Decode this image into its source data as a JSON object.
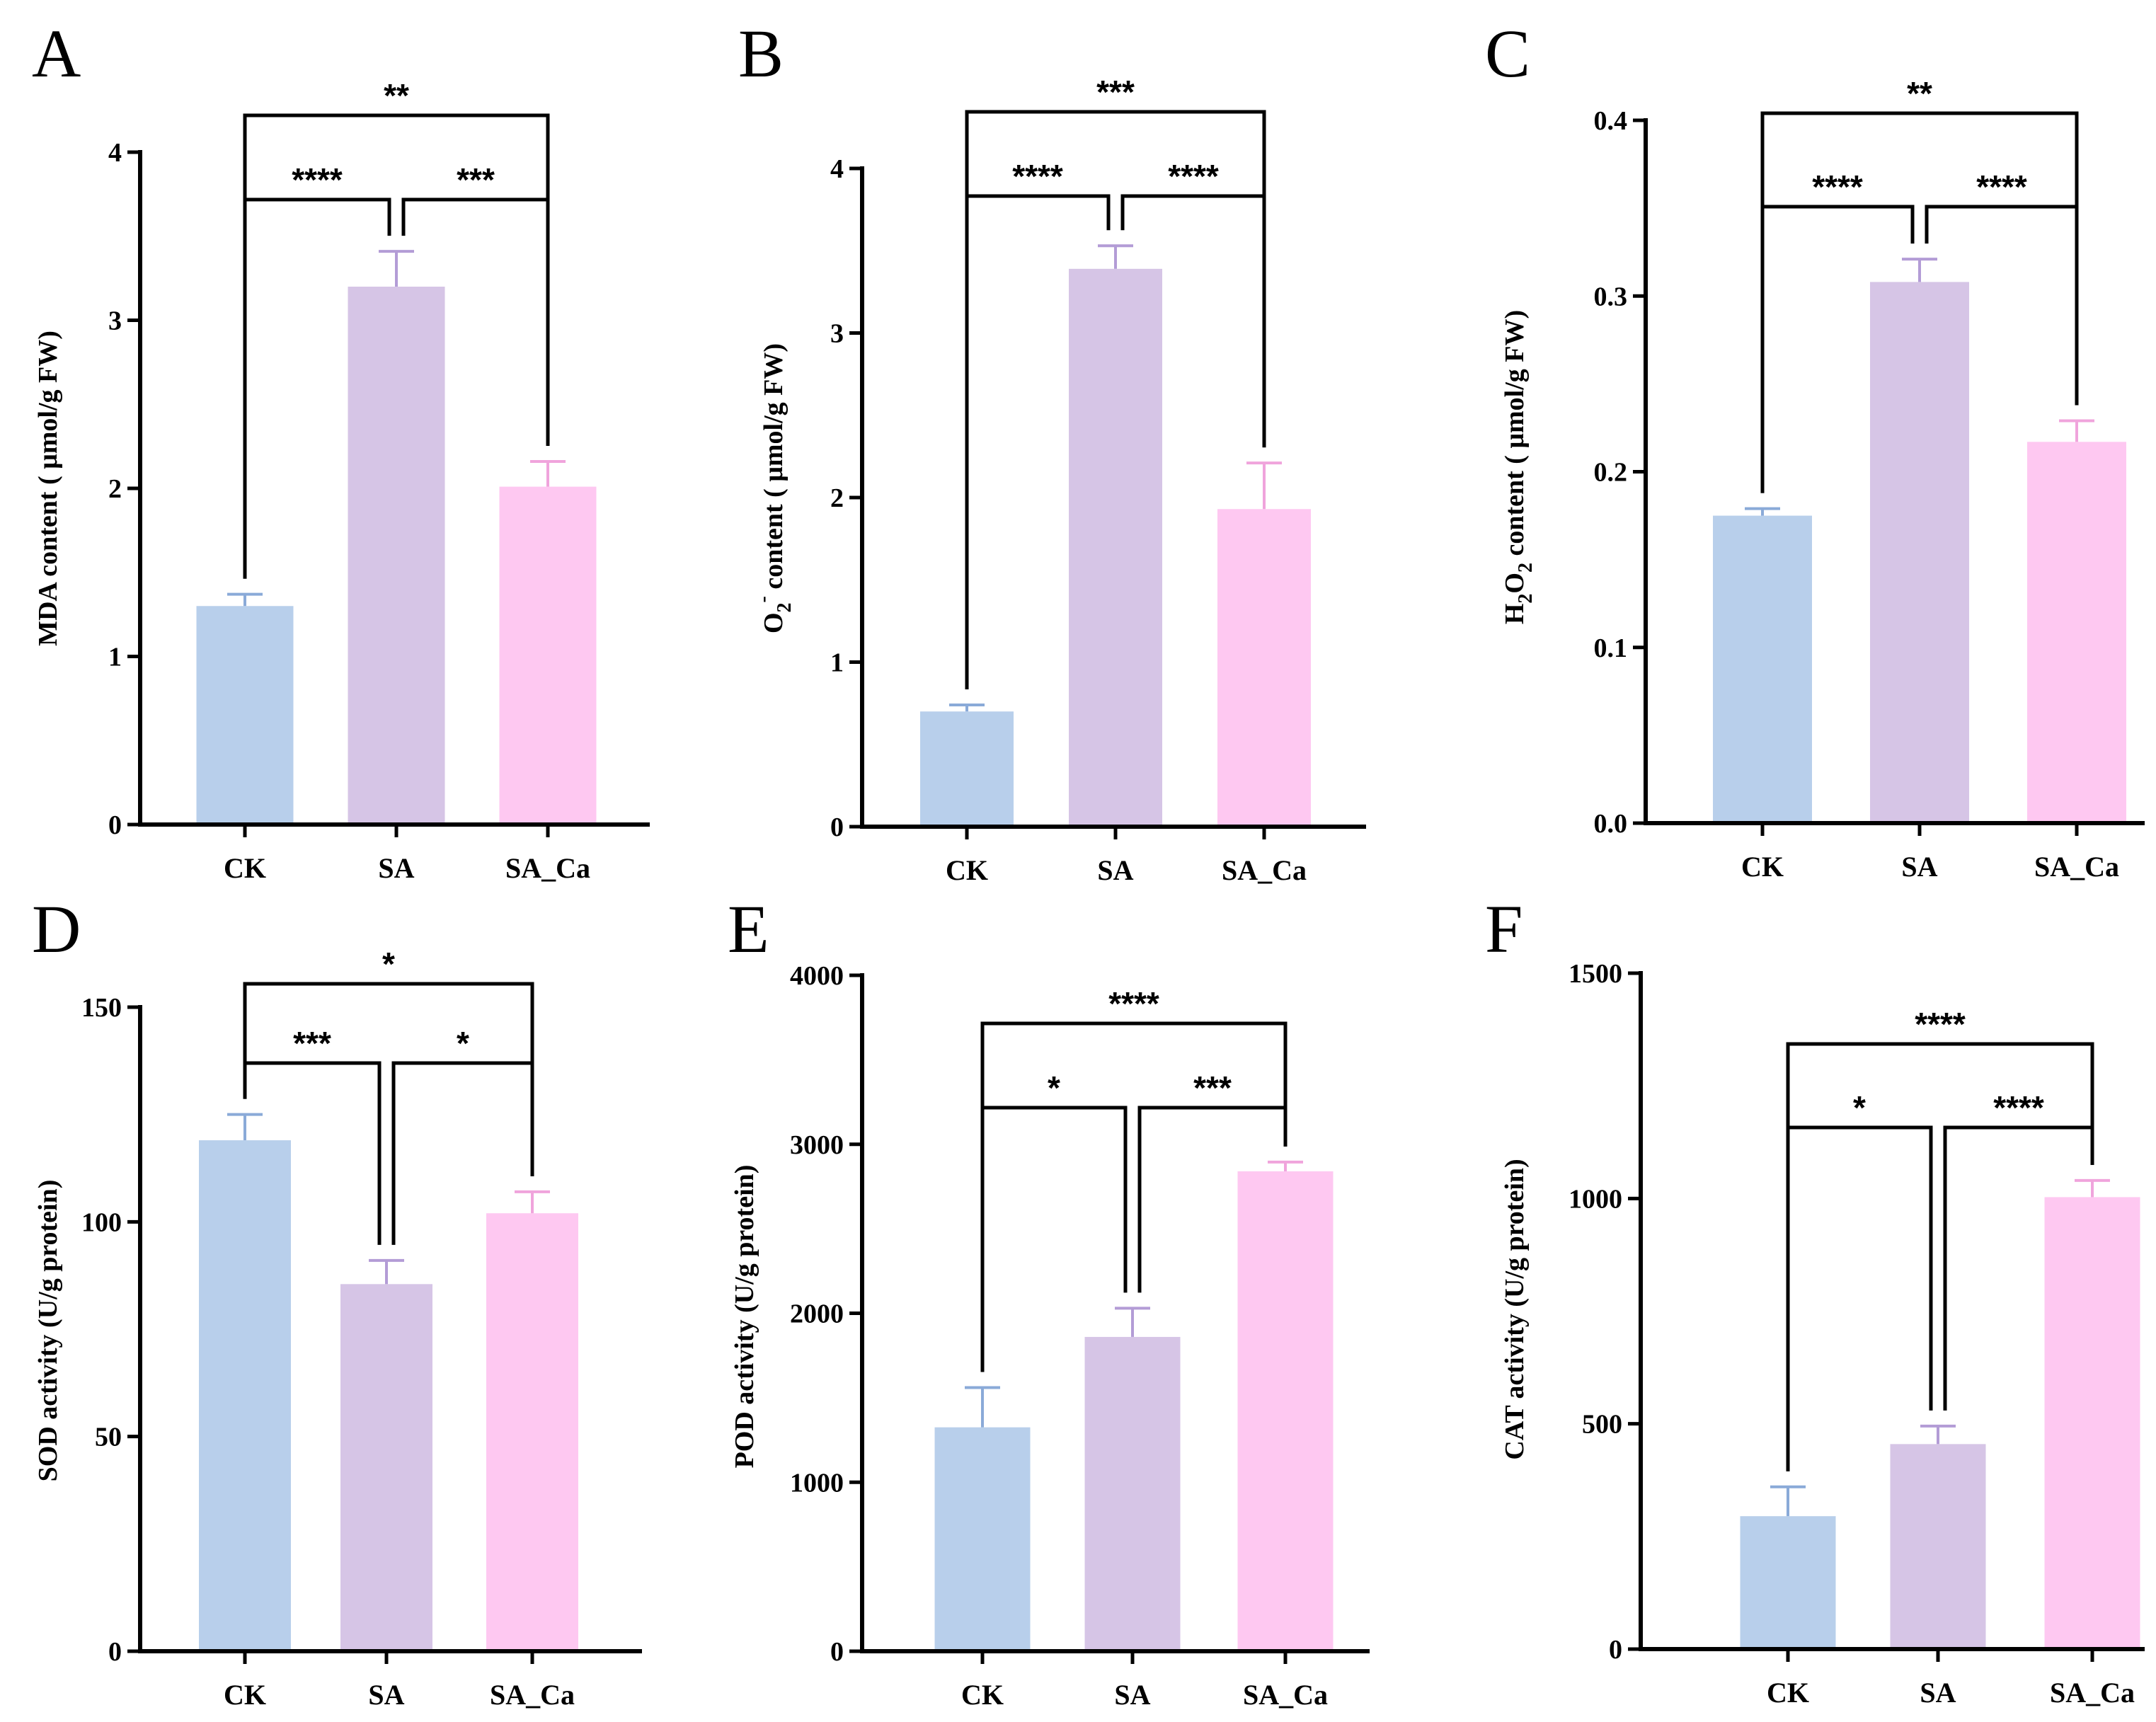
{
  "colors": {
    "CK": "#b8cfeb",
    "SA": "#d6c5e6",
    "SA_Ca": "#fec8f1",
    "CK_err": "#8aaad8",
    "SA_err": "#b39cd6",
    "SA_Ca_err": "#f0a4dc"
  },
  "chart_data": [
    {
      "panel": "A",
      "type": "bar",
      "ylabel": "MDA content ( μmol/g FW)",
      "categories": [
        "CK",
        "SA",
        "SA_Ca"
      ],
      "values": [
        1.3,
        3.2,
        2.01
      ],
      "errors": [
        0.07,
        0.21,
        0.15
      ],
      "ylim": [
        0,
        4
      ],
      "ticks": [
        0,
        1,
        2,
        3,
        4
      ],
      "tick_labels": [
        "0",
        "1",
        "2",
        "3",
        "4"
      ],
      "significance": [
        {
          "from": 0,
          "to": 1,
          "label": "****"
        },
        {
          "from": 1,
          "to": 2,
          "label": "***"
        },
        {
          "from": 0,
          "to": 2,
          "label": "**"
        }
      ]
    },
    {
      "panel": "B",
      "type": "bar",
      "ylabel": "O2- content ( μmol/g FW)",
      "ylabel_parts": [
        "O",
        "2",
        "-",
        " content ( μmol/g FW)"
      ],
      "categories": [
        "CK",
        "SA",
        "SA_Ca"
      ],
      "values": [
        0.7,
        3.39,
        1.93
      ],
      "errors": [
        0.04,
        0.14,
        0.28
      ],
      "ylim": [
        0,
        4
      ],
      "ticks": [
        0,
        1,
        2,
        3,
        4
      ],
      "tick_labels": [
        "0",
        "1",
        "2",
        "3",
        "4"
      ],
      "significance": [
        {
          "from": 0,
          "to": 1,
          "label": "****"
        },
        {
          "from": 1,
          "to": 2,
          "label": "****"
        },
        {
          "from": 0,
          "to": 2,
          "label": "***"
        }
      ]
    },
    {
      "panel": "C",
      "type": "bar",
      "ylabel": "H2O2 content ( μmol/g FW)",
      "ylabel_parts": [
        "H",
        "2",
        "O",
        "2",
        " content ( μmol/g FW)"
      ],
      "categories": [
        "CK",
        "SA",
        "SA_Ca"
      ],
      "values": [
        0.175,
        0.308,
        0.217
      ],
      "errors": [
        0.004,
        0.013,
        0.012
      ],
      "ylim": [
        0,
        0.4
      ],
      "ticks": [
        0,
        0.1,
        0.2,
        0.3,
        0.4
      ],
      "tick_labels": [
        "0.0",
        "0.1",
        "0.2",
        "0.3",
        "0.4"
      ],
      "significance": [
        {
          "from": 0,
          "to": 1,
          "label": "****"
        },
        {
          "from": 1,
          "to": 2,
          "label": "****"
        },
        {
          "from": 0,
          "to": 2,
          "label": "**"
        }
      ]
    },
    {
      "panel": "D",
      "type": "bar",
      "ylabel": "SOD activity (U/g protein)",
      "categories": [
        "CK",
        "SA",
        "SA_Ca"
      ],
      "values": [
        119,
        85.5,
        102
      ],
      "errors": [
        6,
        5.5,
        5
      ],
      "ylim": [
        0,
        150
      ],
      "ticks": [
        0,
        50,
        100,
        150
      ],
      "tick_labels": [
        "0",
        "50",
        "100",
        "150"
      ],
      "significance": [
        {
          "from": 0,
          "to": 1,
          "label": "***"
        },
        {
          "from": 1,
          "to": 2,
          "label": "*"
        },
        {
          "from": 0,
          "to": 2,
          "label": "*"
        }
      ]
    },
    {
      "panel": "E",
      "type": "bar",
      "ylabel": "POD activity (U/g protein)",
      "categories": [
        "CK",
        "SA",
        "SA_Ca"
      ],
      "values": [
        1325,
        1860,
        2840
      ],
      "errors": [
        235,
        170,
        55
      ],
      "ylim": [
        0,
        4000
      ],
      "ticks": [
        0,
        1000,
        2000,
        3000,
        4000
      ],
      "tick_labels": [
        "0",
        "1000",
        "2000",
        "3000",
        "4000"
      ],
      "significance": [
        {
          "from": 0,
          "to": 1,
          "label": "*"
        },
        {
          "from": 1,
          "to": 2,
          "label": "***"
        },
        {
          "from": 0,
          "to": 2,
          "label": "****"
        }
      ]
    },
    {
      "panel": "F",
      "type": "bar",
      "ylabel": "CAT activity (U/g protein)",
      "categories": [
        "CK",
        "SA",
        "SA_Ca"
      ],
      "values": [
        295,
        455,
        1003
      ],
      "errors": [
        65,
        40,
        37
      ],
      "ylim": [
        0,
        1500
      ],
      "ticks": [
        0,
        500,
        1000,
        1500
      ],
      "tick_labels": [
        "0",
        "500",
        "1000",
        "1500"
      ],
      "significance": [
        {
          "from": 0,
          "to": 1,
          "label": "*"
        },
        {
          "from": 1,
          "to": 2,
          "label": "****"
        },
        {
          "from": 0,
          "to": 2,
          "label": "****"
        }
      ]
    }
  ]
}
